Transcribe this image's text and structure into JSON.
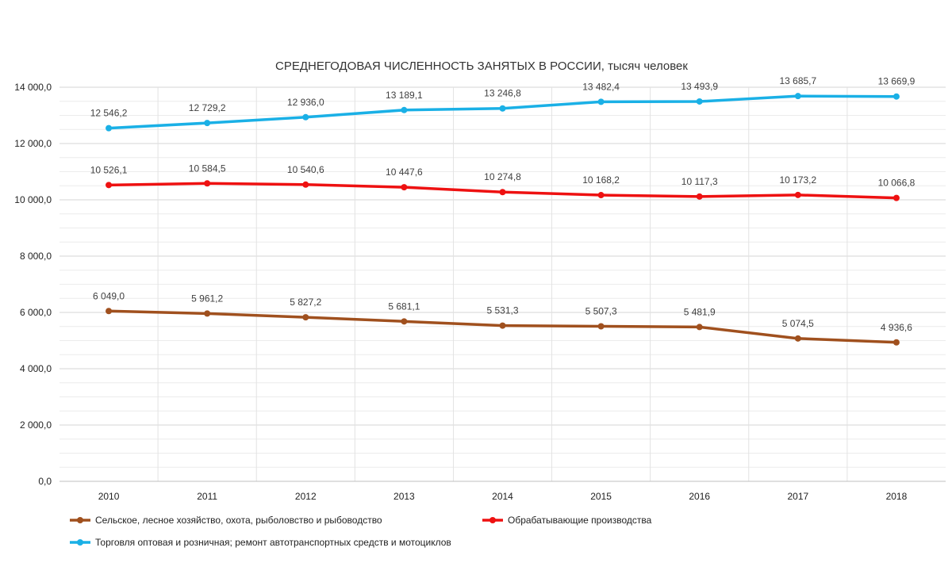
{
  "chart_data": {
    "type": "line",
    "title": "СРЕДНЕГОДОВАЯ ЧИСЛЕННОСТЬ ЗАНЯТЫХ В РОССИИ, тысяч человек",
    "xlabel": "",
    "ylabel": "",
    "categories": [
      "2010",
      "2011",
      "2012",
      "2013",
      "2014",
      "2015",
      "2016",
      "2017",
      "2018"
    ],
    "ylim": [
      0,
      14000
    ],
    "yticks": [
      0,
      2000,
      4000,
      6000,
      8000,
      10000,
      12000,
      14000
    ],
    "ytick_labels": [
      "0,0",
      "2 000,0",
      "4 000,0",
      "6 000,0",
      "8 000,0",
      "10 000,0",
      "12 000,0",
      "14 000,0"
    ],
    "grid": true,
    "legend_position": "bottom",
    "series": [
      {
        "name": "Сельское, лесное хозяйство, охота, рыболовство и рыбоводство",
        "color": "#a0501e",
        "values": [
          6049.0,
          5961.2,
          5827.2,
          5681.1,
          5531.3,
          5507.3,
          5481.9,
          5074.5,
          4936.6
        ],
        "labels": [
          "6 049,0",
          "5 961,2",
          "5 827,2",
          "5 681,1",
          "5 531,3",
          "5 507,3",
          "5 481,9",
          "5 074,5",
          "4 936,6"
        ]
      },
      {
        "name": "Обрабатывающие производства",
        "color": "#ee1111",
        "values": [
          10526.1,
          10584.5,
          10540.6,
          10447.6,
          10274.8,
          10168.2,
          10117.3,
          10173.2,
          10066.8
        ],
        "labels": [
          "10 526,1",
          "10 584,5",
          "10 540,6",
          "10 447,6",
          "10 274,8",
          "10 168,2",
          "10 117,3",
          "10 173,2",
          "10 066,8"
        ]
      },
      {
        "name": "Торговля оптовая и розничная; ремонт автотранспортных средств и мотоциклов",
        "color": "#1ab0e6",
        "values": [
          12546.2,
          12729.2,
          12936.0,
          13189.1,
          13246.8,
          13482.4,
          13493.9,
          13685.7,
          13669.9
        ],
        "labels": [
          "12 546,2",
          "12 729,2",
          "12 936,0",
          "13 189,1",
          "13 246,8",
          "13 482,4",
          "13 493,9",
          "13 685,7",
          "13 669,9"
        ]
      }
    ]
  }
}
